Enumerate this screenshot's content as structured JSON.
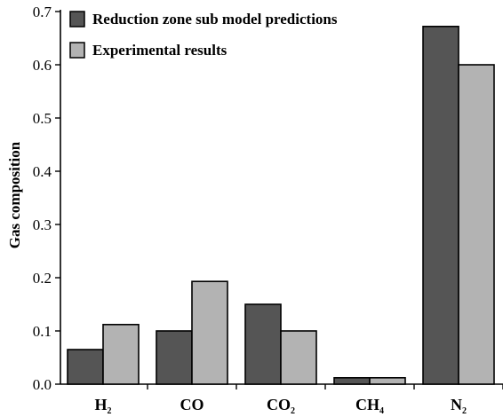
{
  "chart_data": {
    "type": "bar",
    "categories": [
      "H",
      "CO",
      "CO",
      "CH",
      "N"
    ],
    "category_subscripts": [
      "2",
      "",
      "2",
      "4",
      "2"
    ],
    "series": [
      {
        "name": "Reduction zone sub model predictions",
        "values": [
          0.065,
          0.1,
          0.15,
          0.012,
          0.672
        ]
      },
      {
        "name": "Experimental results",
        "values": [
          0.112,
          0.193,
          0.1,
          0.012,
          0.6
        ]
      }
    ],
    "title": "",
    "xlabel": "",
    "ylabel": "Gas composition",
    "ylim": [
      0,
      0.7
    ],
    "yticks": [
      "0.0",
      "0.1",
      "0.2",
      "0.3",
      "0.4",
      "0.5",
      "0.6",
      "0.7"
    ],
    "grid": false,
    "legend_position": "top-left",
    "colors": {
      "series1": "#555555",
      "series2": "#b3b3b3",
      "stroke": "#000000"
    }
  }
}
